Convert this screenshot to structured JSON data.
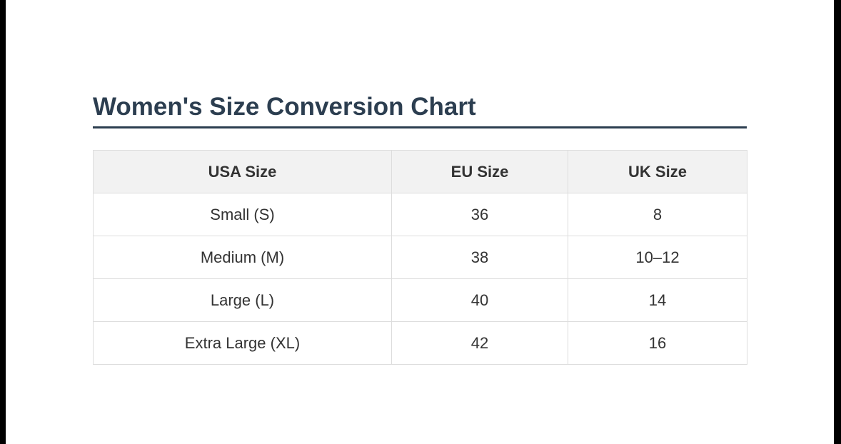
{
  "header": {
    "title": "Women's Size Conversion Chart"
  },
  "table": {
    "columns": [
      "USA Size",
      "EU Size",
      "UK Size"
    ],
    "rows": [
      [
        "Small (S)",
        "36",
        "8"
      ],
      [
        "Medium (M)",
        "38",
        "10–12"
      ],
      [
        "Large (L)",
        "40",
        "14"
      ],
      [
        "Extra Large (XL)",
        "42",
        "16"
      ]
    ]
  }
}
